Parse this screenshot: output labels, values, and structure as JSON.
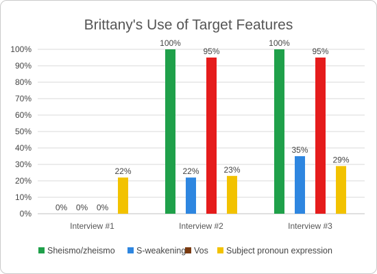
{
  "chart_data": {
    "type": "bar",
    "title": "Brittany's Use of Target Features",
    "categories": [
      "Interview #1",
      "Interview #2",
      "Interview #3"
    ],
    "ylim": [
      0,
      100
    ],
    "yticks": [
      "0%",
      "10%",
      "20%",
      "30%",
      "40%",
      "50%",
      "60%",
      "70%",
      "80%",
      "90%",
      "100%"
    ],
    "grid": true,
    "legend_position": "bottom",
    "series": [
      {
        "name": "Sheismo/zheismo",
        "color": "#1fa04a",
        "values": [
          0,
          100,
          100
        ],
        "labels": [
          "0%",
          "100%",
          "100%"
        ]
      },
      {
        "name": "S-weakening",
        "color": "#2e86e0",
        "values": [
          0,
          22,
          35
        ],
        "labels": [
          "0%",
          "22%",
          "35%"
        ]
      },
      {
        "name": "Vos",
        "color": "#e51c1c",
        "legend_color": "#7a3a10",
        "values": [
          0,
          95,
          95
        ],
        "labels": [
          "0%",
          "95%",
          "95%"
        ]
      },
      {
        "name": "Subject pronoun expression",
        "color": "#f2c200",
        "values": [
          22,
          23,
          29
        ],
        "labels": [
          "22%",
          "23%",
          "29%"
        ]
      }
    ]
  }
}
